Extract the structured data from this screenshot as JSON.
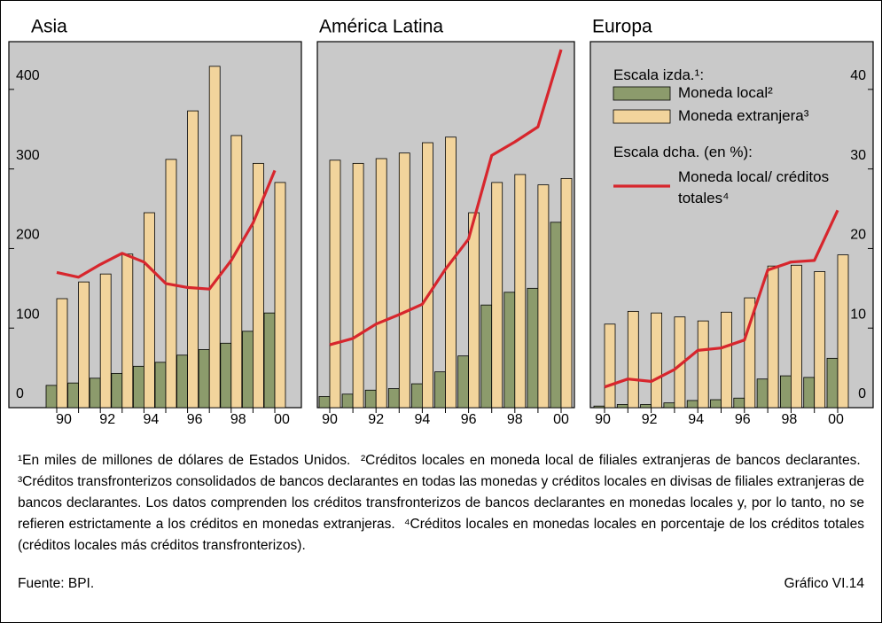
{
  "chart_data": [
    {
      "type": "bar",
      "title": "Asia",
      "categories": [
        "90",
        null,
        "92",
        null,
        "94",
        null,
        "96",
        null,
        "98",
        null,
        "00"
      ],
      "ylim": [
        0,
        460
      ],
      "yticks": [
        0,
        100,
        200,
        300,
        400
      ],
      "y2lim": [
        0,
        46
      ],
      "series": [
        {
          "name": "Moneda local²",
          "color": "#8c9b6c",
          "values": [
            28,
            31,
            37,
            43,
            52,
            57,
            66,
            73,
            81,
            96,
            119
          ]
        },
        {
          "name": "Moneda extranjera³",
          "color": "#f2d49c",
          "values": [
            137,
            158,
            168,
            193,
            245,
            312,
            373,
            429,
            342,
            307,
            283
          ]
        },
        {
          "name": "Moneda local/ créditos totales⁴",
          "color": "#d7262d",
          "type": "line",
          "axis": "y2",
          "values": [
            17.0,
            16.4,
            18.0,
            19.4,
            18.3,
            15.6,
            15.1,
            14.9,
            18.5,
            23.2,
            29.8
          ]
        }
      ]
    },
    {
      "type": "bar",
      "title": "América Latina",
      "categories": [
        "90",
        null,
        "92",
        null,
        "94",
        null,
        "96",
        null,
        "98",
        null,
        "00"
      ],
      "ylim": [
        0,
        460
      ],
      "y2lim": [
        0,
        46
      ],
      "series": [
        {
          "name": "Moneda local²",
          "color": "#8c9b6c",
          "values": [
            14,
            17,
            22,
            24,
            30,
            45,
            65,
            129,
            145,
            150,
            233
          ]
        },
        {
          "name": "Moneda extranjera³",
          "color": "#f2d49c",
          "values": [
            311,
            307,
            313,
            320,
            333,
            340,
            245,
            283,
            293,
            280,
            288
          ]
        },
        {
          "name": "Moneda local/ créditos totales⁴",
          "color": "#d7262d",
          "type": "line",
          "axis": "y2",
          "values": [
            7.9,
            8.7,
            10.5,
            11.7,
            13.0,
            17.4,
            21.2,
            31.7,
            33.4,
            35.3,
            45.0
          ]
        }
      ]
    },
    {
      "type": "bar",
      "title": "Europa",
      "categories": [
        "90",
        null,
        "92",
        null,
        "94",
        null,
        "96",
        null,
        "98",
        null,
        "00"
      ],
      "ylim": [
        0,
        460
      ],
      "y2lim": [
        0,
        46
      ],
      "y2ticks": [
        0,
        10,
        20,
        30,
        40
      ],
      "legend": {
        "left_heading": "Escala izda.¹:",
        "right_heading": "Escala dcha. (en %):"
      },
      "series": [
        {
          "name": "Moneda local²",
          "color": "#8c9b6c",
          "values": [
            2,
            4,
            4,
            6,
            9,
            10,
            12,
            36,
            40,
            38,
            62
          ]
        },
        {
          "name": "Moneda extranjera³",
          "color": "#f2d49c",
          "values": [
            105,
            121,
            119,
            114,
            109,
            120,
            138,
            178,
            179,
            171,
            192
          ]
        },
        {
          "name": "Moneda local/ créditos totales⁴",
          "color": "#d7262d",
          "type": "line",
          "axis": "y2",
          "values": [
            2.6,
            3.6,
            3.3,
            4.8,
            7.2,
            7.5,
            8.5,
            17.3,
            18.3,
            18.5,
            24.8
          ]
        }
      ]
    }
  ],
  "footnotes": [
    "¹En miles de millones de dólares de Estados Unidos.",
    "²Créditos locales en moneda local de filiales extranjeras de bancos declarantes.",
    "³Créditos transfronterizos consolidados de bancos declarantes en todas las monedas y créditos locales en divisas de filiales extranjeras de bancos declarantes. Los datos comprenden los créditos transfronterizos de bancos declarantes en monedas locales y, por lo tanto, no se refieren estrictamente a los créditos en monedas extranjeras.",
    "⁴Créditos locales en monedas locales en porcentaje de los créditos totales (créditos locales más créditos transfronterizos)."
  ],
  "source": "Fuente: BPI.",
  "figure_label": "Gráfico VI.14"
}
